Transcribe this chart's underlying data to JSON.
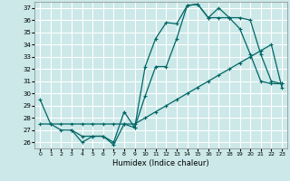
{
  "xlabel": "Humidex (Indice chaleur)",
  "xlim": [
    -0.5,
    23.5
  ],
  "ylim": [
    25.5,
    37.5
  ],
  "yticks": [
    26,
    27,
    28,
    29,
    30,
    31,
    32,
    33,
    34,
    35,
    36,
    37
  ],
  "xticks": [
    0,
    1,
    2,
    3,
    4,
    5,
    6,
    7,
    8,
    9,
    10,
    11,
    12,
    13,
    14,
    15,
    16,
    17,
    18,
    19,
    20,
    21,
    22,
    23
  ],
  "bg_color": "#cce8e8",
  "grid_color": "#ffffff",
  "line_color": "#006666",
  "line1_x": [
    0,
    1,
    2,
    3,
    4,
    5,
    6,
    7,
    8,
    9,
    10,
    11,
    12,
    13,
    14,
    15,
    16,
    17,
    18,
    19,
    20,
    21,
    22,
    23
  ],
  "line1_y": [
    29.5,
    27.5,
    27.0,
    27.0,
    26.0,
    26.5,
    26.5,
    26.0,
    28.5,
    27.2,
    32.2,
    34.5,
    35.8,
    35.7,
    37.2,
    37.3,
    36.2,
    37.0,
    36.2,
    35.3,
    33.2,
    31.0,
    30.8,
    30.8
  ],
  "line2_x": [
    0,
    1,
    2,
    3,
    4,
    5,
    6,
    7,
    8,
    9,
    10,
    11,
    12,
    13,
    14,
    15,
    16,
    17,
    18,
    19,
    20,
    21,
    22,
    23
  ],
  "line2_y": [
    27.5,
    27.5,
    27.5,
    27.5,
    27.5,
    27.5,
    27.5,
    27.5,
    27.5,
    27.5,
    28.0,
    28.5,
    29.0,
    29.5,
    30.0,
    30.5,
    31.0,
    31.5,
    32.0,
    32.5,
    33.0,
    33.5,
    34.0,
    30.5
  ],
  "line3_x": [
    3,
    4,
    5,
    6,
    7,
    8,
    9,
    10,
    11,
    12,
    13,
    14,
    15,
    16,
    17,
    18,
    19,
    20,
    21,
    22,
    23
  ],
  "line3_y": [
    27.0,
    26.5,
    26.5,
    26.5,
    25.8,
    27.5,
    27.2,
    29.8,
    32.2,
    32.2,
    34.5,
    37.2,
    37.3,
    36.2,
    36.2,
    36.2,
    36.2,
    36.0,
    33.2,
    31.0,
    30.8
  ]
}
